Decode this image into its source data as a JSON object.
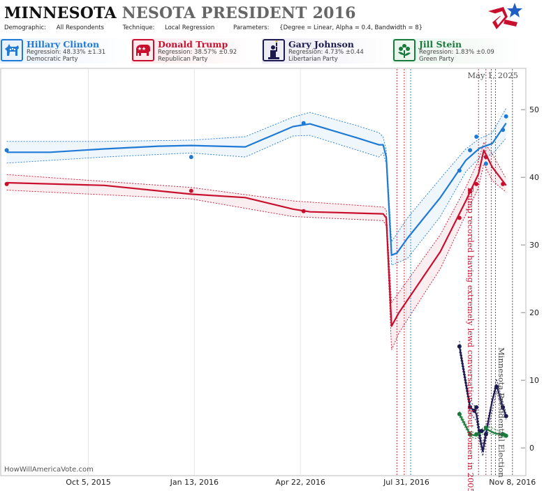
{
  "header": {
    "title_main": "MINNESOTA",
    "title_sub": "NESOTA PRESIDENT 2016",
    "demographic_label": "Demographic:",
    "demographic_value": "All Respondents",
    "technique_label": "Technique:",
    "technique_value": "Local Regression",
    "parameters_label": "Parameters:",
    "parameters_value": "{Degree = Linear, Alpha = 0.4, Bandwidth = 8}"
  },
  "candidates": [
    {
      "name": "Hillary Clinton",
      "regression": "Regression: 48.33% ±1.31",
      "party": "Democratic Party",
      "color": "#1f7ad6",
      "icon": "donkey-icon",
      "bg": "#e8f1fb"
    },
    {
      "name": "Donald Trump",
      "regression": "Regression: 38.57% ±0.92",
      "party": "Republican Party",
      "color": "#c8102e",
      "icon": "elephant-icon",
      "bg": "#fbe9ec"
    },
    {
      "name": "Gary Johnson",
      "regression": "Regression: 4.73% ±0.44",
      "party": "Libertarian Party",
      "color": "#1c1a4f",
      "icon": "liberty-statue-icon",
      "bg": "#eceaf3"
    },
    {
      "name": "Jill Stein",
      "regression": "Regression: 1.83% ±0.09",
      "party": "Green Party",
      "color": "#1a7a3c",
      "icon": "flower-icon",
      "bg": "#e8f4ec"
    }
  ],
  "date_stamp": "May 1, 2025",
  "annotations": {
    "event": "Trump recorded having extremely lewd conversation about women in 2005",
    "election": "Minnesota Presidential Election"
  },
  "footer": "HowWillAmericaVote.com",
  "chart_data": {
    "type": "line",
    "x_axis": {
      "type": "date",
      "ticks": [
        "2015-10-05",
        "2016-01-13",
        "2016-04-22",
        "2016-07-31",
        "2016-11-08"
      ],
      "tick_labels": [
        "Oct 5, 2015",
        "Jan 13, 2016",
        "Apr 22, 2016",
        "Jul 31, 2016",
        "Nov 8, 2016"
      ],
      "range": [
        "2015-07-15",
        "2016-11-20"
      ]
    },
    "y_axis": {
      "ticks": [
        0,
        10,
        20,
        30,
        40,
        50
      ],
      "range": [
        -4,
        56
      ],
      "side": "right"
    },
    "grid": "vertical",
    "event_lines": [
      {
        "date": "2016-07-22",
        "color": "#c8102e"
      },
      {
        "date": "2016-07-29",
        "color": "#c8102e"
      },
      {
        "date": "2016-08-04",
        "color": "#1f7ad6"
      },
      {
        "date": "2016-10-07",
        "color": "#c8102e"
      },
      {
        "date": "2016-10-14",
        "color": "#c8102e"
      },
      {
        "date": "2016-10-19",
        "color": "#c8102e"
      },
      {
        "date": "2016-10-23",
        "color": "#c8102e"
      },
      {
        "date": "2016-11-08",
        "color": "#555555"
      }
    ],
    "series": [
      {
        "name": "Hillary Clinton",
        "color": "#1f7ad6",
        "points": [
          [
            "2015-07-20",
            44
          ],
          [
            "2016-01-10",
            43
          ],
          [
            "2016-04-25",
            48
          ],
          [
            "2016-09-19",
            41
          ],
          [
            "2016-09-29",
            44
          ],
          [
            "2016-10-05",
            46
          ],
          [
            "2016-10-14",
            42
          ],
          [
            "2016-10-30",
            47
          ],
          [
            "2016-11-02",
            49
          ]
        ],
        "line": [
          [
            "2015-07-20",
            43.7
          ],
          [
            "2015-08-30",
            43.7
          ],
          [
            "2015-10-20",
            44.2
          ],
          [
            "2015-12-10",
            44.6
          ],
          [
            "2016-01-10",
            44.7
          ],
          [
            "2016-03-01",
            44.5
          ],
          [
            "2016-04-15",
            47.5
          ],
          [
            "2016-05-01",
            47.9
          ],
          [
            "2016-06-15",
            45.8
          ],
          [
            "2016-07-05",
            44.8
          ],
          [
            "2016-07-09",
            44.8
          ],
          [
            "2016-07-12",
            43.0
          ],
          [
            "2016-07-17",
            28.5
          ],
          [
            "2016-07-22",
            28.8
          ],
          [
            "2016-08-01",
            31.0
          ],
          [
            "2016-09-01",
            37.0
          ],
          [
            "2016-09-25",
            42.5
          ],
          [
            "2016-10-08",
            44.3
          ],
          [
            "2016-10-20",
            45.0
          ],
          [
            "2016-11-02",
            48.0
          ]
        ],
        "upper": [
          [
            "2015-07-20",
            45.3
          ],
          [
            "2015-10-20",
            45.3
          ],
          [
            "2016-01-10",
            45.5
          ],
          [
            "2016-03-01",
            46.0
          ],
          [
            "2016-04-15",
            48.9
          ],
          [
            "2016-05-01",
            49.6
          ],
          [
            "2016-06-15",
            47.6
          ],
          [
            "2016-07-05",
            46.6
          ],
          [
            "2016-07-09",
            46.0
          ],
          [
            "2016-07-12",
            44.0
          ],
          [
            "2016-07-17",
            30.5
          ],
          [
            "2016-08-01",
            34.0
          ],
          [
            "2016-09-01",
            39.8
          ],
          [
            "2016-09-25",
            44.2
          ],
          [
            "2016-10-08",
            45.7
          ],
          [
            "2016-10-20",
            46.6
          ],
          [
            "2016-11-02",
            50.2
          ]
        ],
        "lower": [
          [
            "2015-07-20",
            42.1
          ],
          [
            "2015-10-20",
            43.0
          ],
          [
            "2016-01-10",
            43.6
          ],
          [
            "2016-03-01",
            43.0
          ],
          [
            "2016-04-15",
            46.1
          ],
          [
            "2016-05-01",
            46.2
          ],
          [
            "2016-06-15",
            44.0
          ],
          [
            "2016-07-05",
            43.0
          ],
          [
            "2016-07-09",
            43.6
          ],
          [
            "2016-07-12",
            42.0
          ],
          [
            "2016-07-17",
            27.0
          ],
          [
            "2016-08-01",
            28.0
          ],
          [
            "2016-09-01",
            34.2
          ],
          [
            "2016-09-25",
            40.8
          ],
          [
            "2016-10-08",
            42.9
          ],
          [
            "2016-10-20",
            43.4
          ],
          [
            "2016-11-02",
            45.8
          ]
        ]
      },
      {
        "name": "Donald Trump",
        "color": "#c8102e",
        "points": [
          [
            "2015-07-20",
            39
          ],
          [
            "2016-01-10",
            38
          ],
          [
            "2016-04-25",
            35
          ],
          [
            "2016-09-19",
            34
          ],
          [
            "2016-09-29",
            38
          ],
          [
            "2016-10-05",
            39
          ],
          [
            "2016-10-14",
            43
          ],
          [
            "2016-10-30",
            39
          ]
        ],
        "line": [
          [
            "2015-07-20",
            39.2
          ],
          [
            "2015-10-20",
            38.8
          ],
          [
            "2016-01-10",
            37.5
          ],
          [
            "2016-03-01",
            37.0
          ],
          [
            "2016-04-15",
            35.3
          ],
          [
            "2016-05-01",
            34.9
          ],
          [
            "2016-06-15",
            34.7
          ],
          [
            "2016-07-09",
            34.6
          ],
          [
            "2016-07-12",
            34.0
          ],
          [
            "2016-07-17",
            18.0
          ],
          [
            "2016-07-24",
            20.0
          ],
          [
            "2016-09-01",
            29.0
          ],
          [
            "2016-09-25",
            36.5
          ],
          [
            "2016-10-07",
            40.5
          ],
          [
            "2016-10-12",
            44.0
          ],
          [
            "2016-10-20",
            41.5
          ],
          [
            "2016-11-02",
            38.8
          ]
        ],
        "upper": [
          [
            "2015-07-20",
            40.4
          ],
          [
            "2016-01-10",
            38.5
          ],
          [
            "2016-04-15",
            36.5
          ],
          [
            "2016-07-09",
            35.6
          ],
          [
            "2016-07-12",
            35.2
          ],
          [
            "2016-07-17",
            21.5
          ],
          [
            "2016-07-24",
            23.0
          ],
          [
            "2016-09-01",
            31.5
          ],
          [
            "2016-09-25",
            38.5
          ],
          [
            "2016-10-07",
            42.5
          ],
          [
            "2016-10-12",
            45.2
          ],
          [
            "2016-10-20",
            43.5
          ],
          [
            "2016-11-02",
            39.8
          ]
        ],
        "lower": [
          [
            "2015-07-20",
            38.1
          ],
          [
            "2016-01-10",
            36.8
          ],
          [
            "2016-04-15",
            34.2
          ],
          [
            "2016-07-09",
            33.6
          ],
          [
            "2016-07-12",
            32.8
          ],
          [
            "2016-07-17",
            14.5
          ],
          [
            "2016-07-24",
            17.0
          ],
          [
            "2016-09-01",
            26.5
          ],
          [
            "2016-09-25",
            34.5
          ],
          [
            "2016-10-07",
            38.5
          ],
          [
            "2016-10-12",
            42.0
          ],
          [
            "2016-10-20",
            39.5
          ],
          [
            "2016-11-02",
            37.8
          ]
        ]
      },
      {
        "name": "Gary Johnson",
        "color": "#1c1a4f",
        "points": [
          [
            "2016-09-19",
            15
          ],
          [
            "2016-09-29",
            6
          ],
          [
            "2016-10-03",
            5.5
          ],
          [
            "2016-10-05",
            6
          ],
          [
            "2016-10-10",
            2.5
          ],
          [
            "2016-10-14",
            2
          ],
          [
            "2016-10-24",
            9
          ],
          [
            "2016-10-30",
            6
          ],
          [
            "2016-11-02",
            4.7
          ]
        ],
        "line": [
          [
            "2016-09-19",
            15
          ],
          [
            "2016-09-29",
            6
          ],
          [
            "2016-10-03",
            5.5
          ],
          [
            "2016-10-05",
            5.0
          ],
          [
            "2016-10-09",
            1.0
          ],
          [
            "2016-10-11",
            -0.5
          ],
          [
            "2016-10-14",
            2.0
          ],
          [
            "2016-10-20",
            7.0
          ],
          [
            "2016-10-24",
            9.3
          ],
          [
            "2016-10-30",
            6.0
          ],
          [
            "2016-11-02",
            4.7
          ]
        ],
        "upper": [
          [
            "2016-09-19",
            15.8
          ],
          [
            "2016-09-29",
            6.8
          ],
          [
            "2016-10-05",
            6.0
          ],
          [
            "2016-10-09",
            2.0
          ],
          [
            "2016-10-11",
            0.5
          ],
          [
            "2016-10-14",
            3.0
          ],
          [
            "2016-10-24",
            10.2
          ],
          [
            "2016-10-30",
            6.8
          ],
          [
            "2016-11-02",
            5.2
          ]
        ],
        "lower": [
          [
            "2016-09-19",
            14.2
          ],
          [
            "2016-09-29",
            5.2
          ],
          [
            "2016-10-05",
            4.0
          ],
          [
            "2016-10-09",
            0.0
          ],
          [
            "2016-10-11",
            -1.2
          ],
          [
            "2016-10-14",
            1.0
          ],
          [
            "2016-10-24",
            8.4
          ],
          [
            "2016-10-30",
            5.2
          ],
          [
            "2016-11-02",
            4.2
          ]
        ]
      },
      {
        "name": "Jill Stein",
        "color": "#1a7a3c",
        "points": [
          [
            "2016-09-19",
            5
          ],
          [
            "2016-09-29",
            2
          ],
          [
            "2016-10-05",
            2
          ],
          [
            "2016-10-14",
            3
          ],
          [
            "2016-10-30",
            2
          ],
          [
            "2016-11-02",
            1.8
          ]
        ],
        "line": [
          [
            "2016-09-19",
            5
          ],
          [
            "2016-09-29",
            2.0
          ],
          [
            "2016-10-05",
            1.8
          ],
          [
            "2016-10-14",
            2.8
          ],
          [
            "2016-10-22",
            2.2
          ],
          [
            "2016-11-02",
            1.8
          ]
        ],
        "upper": [
          [
            "2016-09-19",
            5.4
          ],
          [
            "2016-09-29",
            2.4
          ],
          [
            "2016-10-05",
            2.2
          ],
          [
            "2016-10-14",
            3.3
          ],
          [
            "2016-11-02",
            2.1
          ]
        ],
        "lower": [
          [
            "2016-09-19",
            4.6
          ],
          [
            "2016-09-29",
            1.6
          ],
          [
            "2016-10-05",
            1.4
          ],
          [
            "2016-10-14",
            2.3
          ],
          [
            "2016-11-02",
            1.5
          ]
        ]
      }
    ]
  }
}
